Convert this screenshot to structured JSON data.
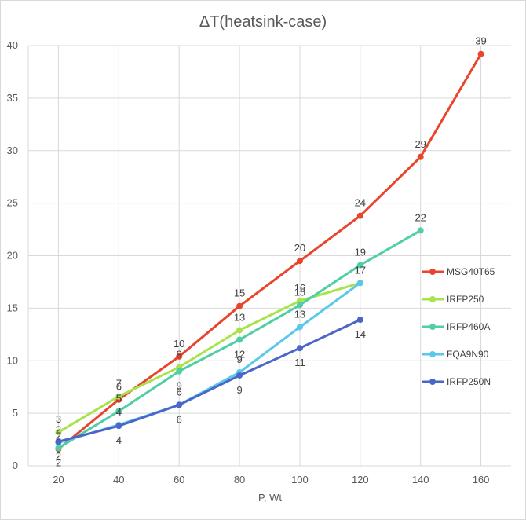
{
  "chart_data": {
    "type": "line",
    "title": "ΔT(heatsink-case)",
    "xlabel": "P, Wt",
    "ylabel": "",
    "xlim": [
      10,
      170
    ],
    "ylim": [
      0,
      40
    ],
    "xticks": [
      "20",
      "40",
      "60",
      "80",
      "100",
      "120",
      "140",
      "160"
    ],
    "yticks": [
      "0",
      "5",
      "10",
      "15",
      "20",
      "25",
      "30",
      "35",
      "40"
    ],
    "grid": true,
    "legend_position": "right",
    "series": [
      {
        "name": "MSG40T65",
        "color": "#e8452c",
        "x": [
          20,
          40,
          60,
          80,
          100,
          120,
          140,
          160
        ],
        "y": [
          1.6,
          6.3,
          10.4,
          15.2,
          19.5,
          23.8,
          29.4,
          39.2
        ],
        "labels": [
          "2",
          "6",
          "10",
          "15",
          "20",
          "24",
          "29",
          "39"
        ],
        "label_pos": "above"
      },
      {
        "name": "IRFP250",
        "color": "#a9e34b",
        "x": [
          20,
          40,
          60,
          80,
          100,
          120
        ],
        "y": [
          3.2,
          6.6,
          9.4,
          12.9,
          15.7,
          17.4
        ],
        "labels": [
          "3",
          "7",
          "9",
          "13",
          "16",
          "17"
        ],
        "label_pos": "above"
      },
      {
        "name": "IRFP460A",
        "color": "#4fcfa3",
        "x": [
          20,
          40,
          60,
          80,
          100,
          120,
          140
        ],
        "y": [
          1.7,
          5.2,
          9.0,
          12.0,
          15.3,
          19.1,
          22.4
        ],
        "labels": [
          "2",
          "5",
          "9",
          "12",
          "15",
          "19",
          "22"
        ],
        "label_pos": "mixed"
      },
      {
        "name": "FQA9N90",
        "color": "#5bc8ea",
        "x": [
          20,
          40,
          60,
          80,
          100,
          120
        ],
        "y": [
          2.2,
          3.9,
          5.8,
          8.9,
          13.2,
          17.4
        ],
        "labels": [
          "2",
          "4",
          "6",
          "9",
          "13",
          "17"
        ],
        "label_pos": "above"
      },
      {
        "name": "IRFP250N",
        "color": "#4a66c8",
        "x": [
          20,
          40,
          60,
          80,
          100,
          120
        ],
        "y": [
          2.3,
          3.8,
          5.8,
          8.6,
          11.2,
          13.9
        ],
        "labels": [
          "2",
          "4",
          "6",
          "9",
          "11",
          "14"
        ],
        "label_pos": "below"
      }
    ]
  }
}
